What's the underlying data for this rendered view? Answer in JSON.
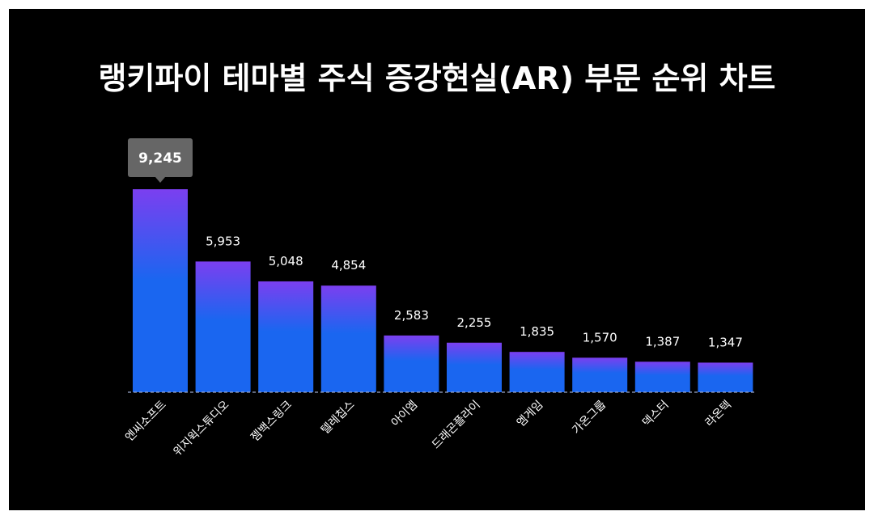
{
  "title": "랭키파이 테마별 주식 증강현실(AR) 부문 순위 차트",
  "colors": {
    "background": "#000000",
    "bar_top": "#7b3ff0",
    "bar_bottom": "#1a66f0",
    "callout": "#666666",
    "baseline": "#9aa6c8"
  },
  "chart_data": {
    "type": "bar",
    "title": "랭키파이 테마별 주식 증강현실(AR) 부문 순위 차트",
    "categories": [
      "엔씨소프트",
      "위지윅스튜디오",
      "젬백스링크",
      "텔레칩스",
      "아이엠",
      "드래곤플라이",
      "엠게임",
      "가온그룹",
      "덱스터",
      "라온텍"
    ],
    "values": [
      9245,
      5953,
      5048,
      4854,
      2583,
      2255,
      1835,
      1570,
      1387,
      1347
    ],
    "value_labels": [
      "9,245",
      "5,953",
      "5,048",
      "4,854",
      "2,583",
      "2,255",
      "1,835",
      "1,570",
      "1,387",
      "1,347"
    ],
    "highlight_index": 0,
    "ylim": [
      0,
      9245
    ],
    "grid": false,
    "legend": "none"
  }
}
